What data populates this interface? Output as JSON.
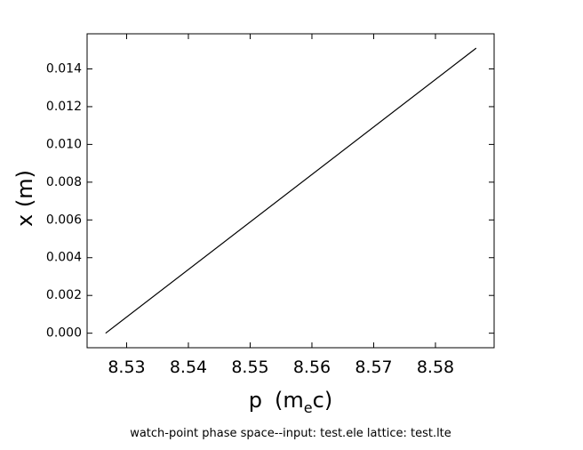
{
  "chart_data": {
    "type": "line",
    "xlabel": "p",
    "xlabel_unit_main": "m",
    "xlabel_unit_sub": "e",
    "xlabel_unit_tail": "c",
    "ylabel": "x  (m)",
    "caption": "watch-point phase space--input: test.ele   lattice: test.lte",
    "xlim": [
      8.5236,
      8.5895
    ],
    "ylim": [
      -0.00077,
      0.01586
    ],
    "x_ticks": [
      8.53,
      8.54,
      8.55,
      8.56,
      8.57,
      8.58
    ],
    "x_tick_labels": [
      "8.53",
      "8.54",
      "8.55",
      "8.56",
      "8.57",
      "8.58"
    ],
    "y_ticks": [
      0.0,
      0.002,
      0.004,
      0.006,
      0.008,
      0.01,
      0.012,
      0.014
    ],
    "y_tick_labels": [
      "0.000",
      "0.002",
      "0.004",
      "0.006",
      "0.008",
      "0.010",
      "0.012",
      "0.014"
    ],
    "grid": false,
    "series": [
      {
        "x": [
          8.5266,
          8.5866
        ],
        "y": [
          0.0,
          0.0151
        ],
        "color": "#000000"
      }
    ]
  }
}
